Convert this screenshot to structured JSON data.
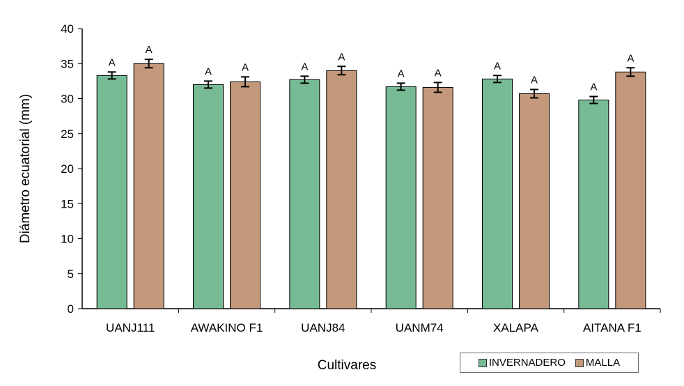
{
  "chart_data": {
    "type": "bar",
    "title": "",
    "xlabel": "Cultivares",
    "ylabel": "Diámetro ecuatorial (mm)",
    "ylim": [
      0,
      40
    ],
    "yticks": [
      0,
      5,
      10,
      15,
      20,
      25,
      30,
      35,
      40
    ],
    "grid": false,
    "legend_position": "bottom-right",
    "categories": [
      "UANJ111",
      "AWAKINO F1",
      "UANJ84",
      "UANM74",
      "XALAPA",
      "AITANA F1"
    ],
    "series": [
      {
        "name": "INVERNADERO",
        "color": "#77bb95",
        "values": [
          33.3,
          32.0,
          32.7,
          31.7,
          32.8,
          29.8
        ],
        "errors": [
          0.5,
          0.5,
          0.5,
          0.5,
          0.5,
          0.5
        ],
        "labels": [
          "A",
          "A",
          "A",
          "A",
          "A",
          "A"
        ]
      },
      {
        "name": "MALLA",
        "color": "#c4997b",
        "values": [
          35.0,
          32.4,
          34.0,
          31.6,
          30.7,
          33.8
        ],
        "errors": [
          0.6,
          0.7,
          0.6,
          0.7,
          0.6,
          0.6
        ],
        "labels": [
          "A",
          "A",
          "A",
          "A",
          "A",
          "A"
        ]
      }
    ]
  }
}
